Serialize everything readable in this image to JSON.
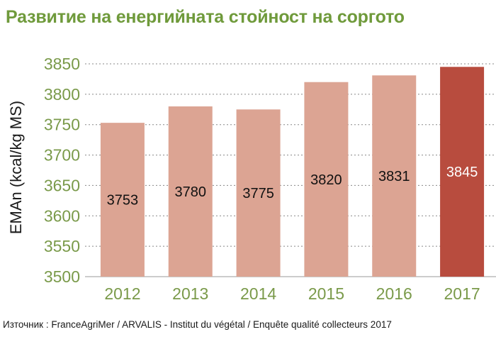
{
  "title": "Развитие на енергийната стойност на соргото",
  "source": "Източник : FranceAgriMer / ARVALIS - Institut du végétal / Enquête qualité collecteurs 2017",
  "chart_data": {
    "type": "bar",
    "categories": [
      "2012",
      "2013",
      "2014",
      "2015",
      "2016",
      "2017"
    ],
    "values": [
      3753,
      3780,
      3775,
      3820,
      3831,
      3845
    ],
    "data_labels": [
      "3753",
      "3780",
      "3775",
      "3820",
      "3831",
      "3845"
    ],
    "ylabel": "EMAn (kcal/kg MS)",
    "ylim": [
      3500,
      3850
    ],
    "yticks": [
      3500,
      3550,
      3600,
      3650,
      3700,
      3750,
      3800,
      3850
    ],
    "grid": "dashed horizontal",
    "colors": {
      "bar": "#dca493",
      "highlight_bar": "#b84c3e",
      "tick_label": "#7a9a4a",
      "grid": "#888888",
      "data_label": "#111111",
      "highlight_label": "#ffffff"
    },
    "highlight_index": 5
  }
}
